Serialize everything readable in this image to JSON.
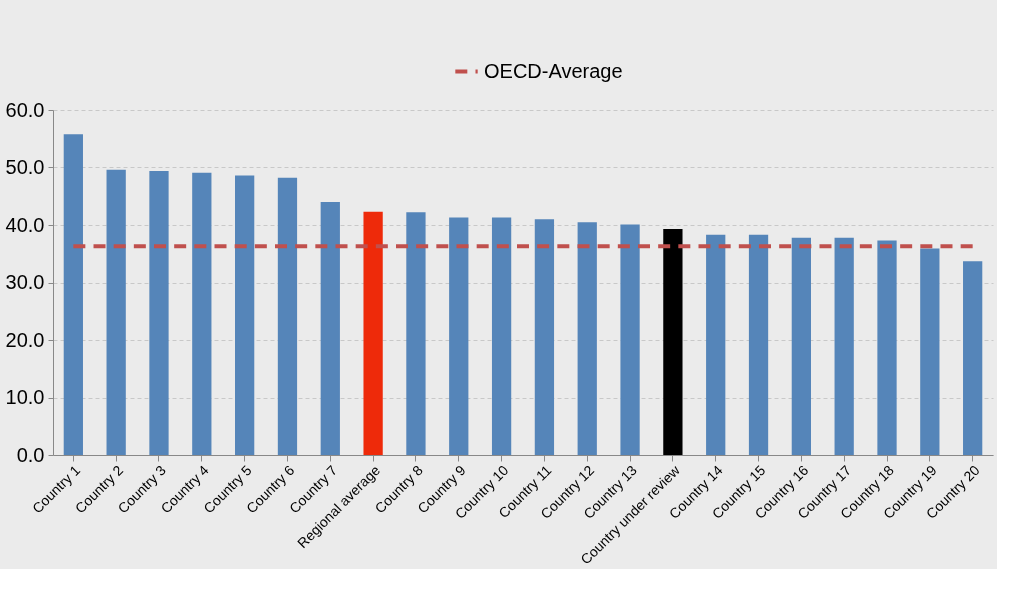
{
  "chart_data": {
    "type": "bar",
    "categories": [
      "Country 1",
      "Country 2",
      "Country 3",
      "Country 4",
      "Country 5",
      "Country 6",
      "Country 7",
      "Regional average",
      "Country 8",
      "Country 9",
      "Country 10",
      "Country 11",
      "Country 12",
      "Country 13",
      "Country under review",
      "Country 14",
      "Country 15",
      "Country 16",
      "Country 17",
      "Country 18",
      "Country 19",
      "Country 20"
    ],
    "series": [
      {
        "colors": [
          "#5585b9",
          "#5585b9",
          "#5585b9",
          "#5585b9",
          "#5585b9",
          "#5585b9",
          "#5585b9",
          "#ee2a0a",
          "#5585b9",
          "#5585b9",
          "#5585b9",
          "#5585b9",
          "#5585b9",
          "#5585b9",
          "#000000",
          "#5585b9",
          "#5585b9",
          "#5585b9",
          "#5585b9",
          "#5585b9",
          "#5585b9",
          "#5585b9"
        ],
        "values": [
          55.8,
          49.6,
          49.4,
          49.1,
          48.6,
          48.2,
          44.0,
          42.3,
          42.2,
          41.3,
          41.3,
          41.0,
          40.5,
          40.1,
          39.3,
          38.3,
          38.3,
          37.8,
          37.8,
          37.3,
          35.9,
          33.7
        ]
      },
      {
        "type": "line",
        "name": "OECD-Average",
        "color": "#c0504d",
        "line_style": "dashed",
        "values": [
          36.3,
          36.3,
          36.3,
          36.3,
          36.3,
          36.3,
          36.3,
          36.3,
          36.3,
          36.3,
          36.3,
          36.3,
          36.3,
          36.3,
          36.3,
          36.3,
          36.3,
          36.3,
          36.3,
          36.3,
          36.3,
          36.3
        ]
      }
    ],
    "ylim": [
      0,
      60
    ],
    "yticks": [
      {
        "value": 0,
        "label": "0.0"
      },
      {
        "value": 10,
        "label": "10.0"
      },
      {
        "value": 20,
        "label": "20.0"
      },
      {
        "value": 30,
        "label": "30.0"
      },
      {
        "value": 40,
        "label": "40.0"
      },
      {
        "value": 50,
        "label": "50.0"
      },
      {
        "value": 60,
        "label": "60.0"
      }
    ],
    "grid": "y",
    "legend": "top"
  }
}
